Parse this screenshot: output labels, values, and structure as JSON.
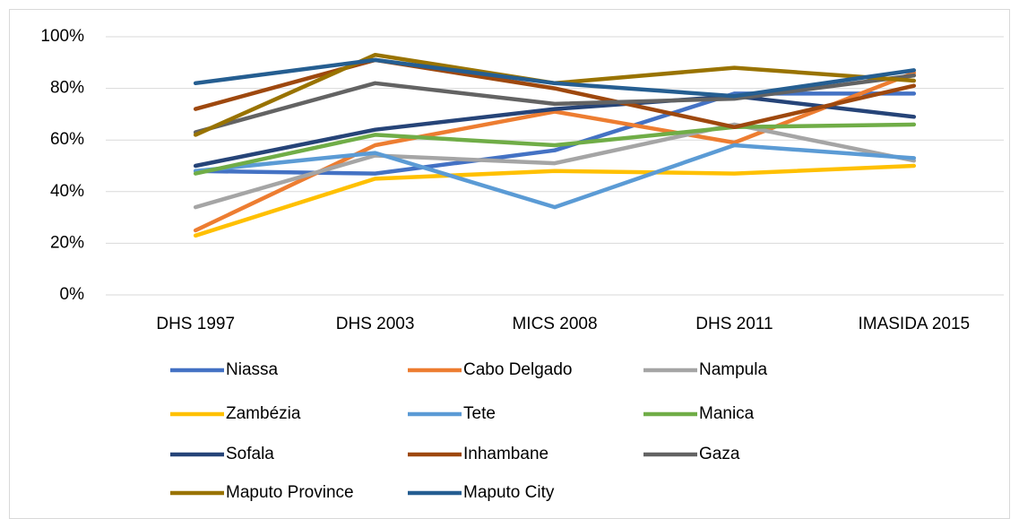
{
  "chart_data": {
    "type": "line",
    "categories": [
      "DHS 1997",
      "DHS 2003",
      "MICS 2008",
      "DHS 2011",
      "IMASIDA 2015"
    ],
    "ylim": [
      0,
      100
    ],
    "yticks": [
      {
        "value": 0,
        "label": "0%"
      },
      {
        "value": 20,
        "label": "20%"
      },
      {
        "value": 40,
        "label": "40%"
      },
      {
        "value": 60,
        "label": "60%"
      },
      {
        "value": 80,
        "label": "80%"
      },
      {
        "value": 100,
        "label": "100%"
      }
    ],
    "grid": true,
    "legend": "bottom",
    "series": [
      {
        "name": "Niassa",
        "color": "#4472c4",
        "values": [
          48,
          47,
          56,
          78,
          78
        ]
      },
      {
        "name": "Cabo Delgado",
        "color": "#ed7d31",
        "values": [
          25,
          58,
          71,
          59,
          86
        ]
      },
      {
        "name": "Nampula",
        "color": "#a5a5a5",
        "values": [
          34,
          54,
          51,
          66,
          52
        ]
      },
      {
        "name": "Zambézia",
        "color": "#ffc000",
        "values": [
          23,
          45,
          48,
          47,
          50
        ]
      },
      {
        "name": "Tete",
        "color": "#5b9bd5",
        "values": [
          48,
          55,
          34,
          58,
          53
        ]
      },
      {
        "name": "Manica",
        "color": "#70ad47",
        "values": [
          47,
          62,
          58,
          65,
          66
        ]
      },
      {
        "name": "Sofala",
        "color": "#264478",
        "values": [
          50,
          64,
          72,
          77,
          69
        ]
      },
      {
        "name": "Inhambane",
        "color": "#9e480e",
        "values": [
          72,
          91,
          80,
          65,
          81
        ]
      },
      {
        "name": "Gaza",
        "color": "#636363",
        "values": [
          63,
          82,
          74,
          76,
          85
        ]
      },
      {
        "name": "Maputo Province",
        "color": "#997300",
        "values": [
          62,
          93,
          82,
          88,
          83
        ]
      },
      {
        "name": "Maputo City",
        "color": "#255e91",
        "values": [
          82,
          91,
          82,
          77,
          87
        ]
      }
    ]
  }
}
